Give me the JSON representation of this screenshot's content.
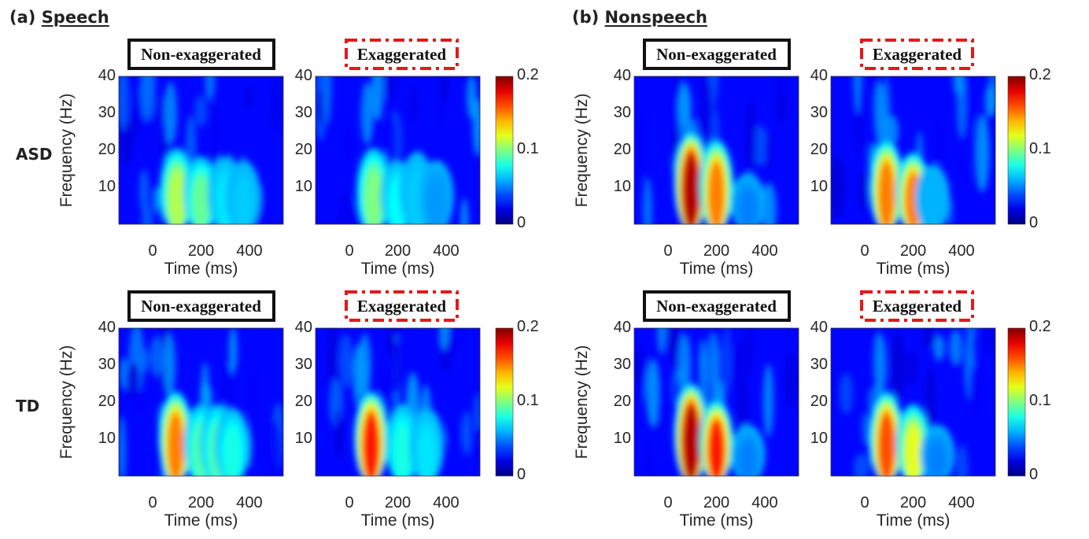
{
  "groups": [
    {
      "label": "(a)",
      "title": "Speech",
      "colorbar": {
        "ticks": [
          "0",
          "0.1",
          "0.2"
        ],
        "clim": [
          0,
          0.2
        ],
        "colormap": "jet"
      }
    },
    {
      "label": "(b)",
      "title": "Nonspeech",
      "colorbar": {
        "ticks": [
          "0",
          "0.1",
          "0.2"
        ],
        "clim": [
          0,
          0.2
        ],
        "colormap": "jet"
      }
    }
  ],
  "rows": [
    "ASD",
    "TD"
  ],
  "colors": {
    "non_exaggerated_box": "#111111",
    "exaggerated_box": "#e3191c"
  },
  "chart_data": [
    {
      "type": "heatmap",
      "group": 0,
      "row": 0,
      "col": 0,
      "title": "Non-exaggerated",
      "box_style": "solid",
      "xlabel": "Time (ms)",
      "ylabel": "Frequency (Hz)",
      "xticks": [
        "0",
        "200",
        "400"
      ],
      "yticks": [
        "10",
        "20",
        "30",
        "40"
      ],
      "xlim": [
        -140,
        540
      ],
      "ylim": [
        0,
        40
      ],
      "clim": [
        0,
        0.2
      ],
      "peaks": [
        {
          "time_ms": 100,
          "freq_max_hz": 18,
          "value": 0.11
        },
        {
          "time_ms": 200,
          "freq_max_hz": 16,
          "value": 0.095
        },
        {
          "time_ms": 300,
          "freq_max_hz": 16,
          "value": 0.07
        },
        {
          "time_ms": 375,
          "freq_max_hz": 15,
          "value": 0.065
        }
      ]
    },
    {
      "type": "heatmap",
      "group": 0,
      "row": 0,
      "col": 1,
      "title": "Exaggerated",
      "box_style": "dash-dot",
      "xlabel": "Time (ms)",
      "ylabel": "",
      "xticks": [
        "0",
        "200",
        "400"
      ],
      "yticks": [
        "10",
        "20",
        "30",
        "40"
      ],
      "xlim": [
        -140,
        540
      ],
      "ylim": [
        0,
        40
      ],
      "clim": [
        0,
        0.2
      ],
      "peaks": [
        {
          "time_ms": 100,
          "freq_max_hz": 18,
          "value": 0.1
        },
        {
          "time_ms": 200,
          "freq_max_hz": 15,
          "value": 0.075
        },
        {
          "time_ms": 280,
          "freq_max_hz": 17,
          "value": 0.065
        },
        {
          "time_ms": 360,
          "freq_max_hz": 15,
          "value": 0.055
        }
      ]
    },
    {
      "type": "heatmap",
      "group": 0,
      "row": 1,
      "col": 0,
      "title": "Non-exaggerated",
      "box_style": "solid",
      "xlabel": "Time (ms)",
      "ylabel": "Frequency (Hz)",
      "xticks": [
        "0",
        "200",
        "400"
      ],
      "yticks": [
        "10",
        "20",
        "30",
        "40"
      ],
      "xlim": [
        -140,
        540
      ],
      "ylim": [
        0,
        40
      ],
      "clim": [
        0,
        0.2
      ],
      "peaks": [
        {
          "time_ms": 95,
          "freq_max_hz": 20,
          "value": 0.15
        },
        {
          "time_ms": 200,
          "freq_max_hz": 17,
          "value": 0.09
        },
        {
          "time_ms": 270,
          "freq_max_hz": 17,
          "value": 0.09
        },
        {
          "time_ms": 330,
          "freq_max_hz": 16,
          "value": 0.08
        }
      ]
    },
    {
      "type": "heatmap",
      "group": 0,
      "row": 1,
      "col": 1,
      "title": "Exaggerated",
      "box_style": "dash-dot",
      "xlabel": "Time (ms)",
      "ylabel": "",
      "xticks": [
        "0",
        "200",
        "400"
      ],
      "yticks": [
        "10",
        "20",
        "30",
        "40"
      ],
      "xlim": [
        -140,
        540
      ],
      "ylim": [
        0,
        40
      ],
      "clim": [
        0,
        0.2
      ],
      "peaks": [
        {
          "time_ms": 90,
          "freq_max_hz": 20,
          "value": 0.17
        },
        {
          "time_ms": 220,
          "freq_max_hz": 17,
          "value": 0.08
        },
        {
          "time_ms": 320,
          "freq_max_hz": 16,
          "value": 0.07
        }
      ]
    },
    {
      "type": "heatmap",
      "group": 1,
      "row": 0,
      "col": 0,
      "title": "Non-exaggerated",
      "box_style": "solid",
      "xlabel": "Time (ms)",
      "ylabel": "Frequency (Hz)",
      "xticks": [
        "0",
        "200",
        "400"
      ],
      "yticks": [
        "10",
        "20",
        "30",
        "40"
      ],
      "xlim": [
        -140,
        540
      ],
      "ylim": [
        0,
        40
      ],
      "clim": [
        0,
        0.2
      ],
      "peaks": [
        {
          "time_ms": 95,
          "freq_max_hz": 22,
          "value": 0.19
        },
        {
          "time_ms": 200,
          "freq_max_hz": 20,
          "value": 0.15
        },
        {
          "time_ms": 330,
          "freq_max_hz": 12,
          "value": 0.05
        }
      ]
    },
    {
      "type": "heatmap",
      "group": 1,
      "row": 0,
      "col": 1,
      "title": "Exaggerated",
      "box_style": "dash-dot",
      "xlabel": "Time (ms)",
      "ylabel": "",
      "xticks": [
        "0",
        "200",
        "400"
      ],
      "yticks": [
        "10",
        "20",
        "30",
        "40"
      ],
      "xlim": [
        -140,
        540
      ],
      "ylim": [
        0,
        40
      ],
      "clim": [
        0,
        0.2
      ],
      "peaks": [
        {
          "time_ms": 90,
          "freq_max_hz": 20,
          "value": 0.15
        },
        {
          "time_ms": 200,
          "freq_max_hz": 17,
          "value": 0.15
        },
        {
          "time_ms": 280,
          "freq_max_hz": 14,
          "value": 0.06
        }
      ]
    },
    {
      "type": "heatmap",
      "group": 1,
      "row": 1,
      "col": 0,
      "title": "Non-exaggerated",
      "box_style": "solid",
      "xlabel": "Time (ms)",
      "ylabel": "Frequency (Hz)",
      "xticks": [
        "0",
        "200",
        "400"
      ],
      "yticks": [
        "10",
        "20",
        "30",
        "40"
      ],
      "xlim": [
        -140,
        540
      ],
      "ylim": [
        0,
        40
      ],
      "clim": [
        0,
        0.2
      ],
      "peaks": [
        {
          "time_ms": 95,
          "freq_max_hz": 22,
          "value": 0.19
        },
        {
          "time_ms": 200,
          "freq_max_hz": 18,
          "value": 0.17
        },
        {
          "time_ms": 330,
          "freq_max_hz": 12,
          "value": 0.05
        }
      ]
    },
    {
      "type": "heatmap",
      "group": 1,
      "row": 1,
      "col": 1,
      "title": "Exaggerated",
      "box_style": "dash-dot",
      "xlabel": "Time (ms)",
      "ylabel": "",
      "xticks": [
        "0",
        "200",
        "400"
      ],
      "yticks": [
        "10",
        "20",
        "30",
        "40"
      ],
      "xlim": [
        -140,
        540
      ],
      "ylim": [
        0,
        40
      ],
      "clim": [
        0,
        0.2
      ],
      "peaks": [
        {
          "time_ms": 90,
          "freq_max_hz": 20,
          "value": 0.16
        },
        {
          "time_ms": 200,
          "freq_max_hz": 17,
          "value": 0.12
        },
        {
          "time_ms": 300,
          "freq_max_hz": 12,
          "value": 0.05
        }
      ]
    }
  ]
}
